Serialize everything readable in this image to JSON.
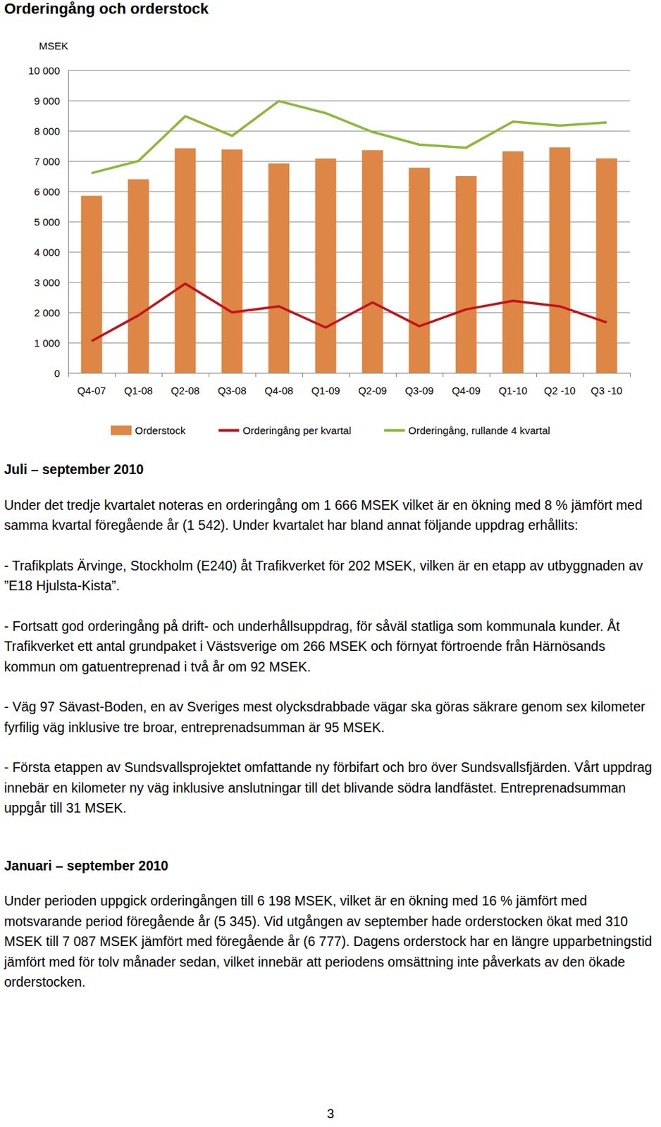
{
  "heading": "Orderingång och orderstock",
  "chart_data": {
    "type": "bar",
    "y_label": "MSEK",
    "categories": [
      "Q4-07",
      "Q1-08",
      "Q2-08",
      "Q3-08",
      "Q4-08",
      "Q1-09",
      "Q2-09",
      "Q3-09",
      "Q4-09",
      "Q1-10",
      "Q2 -10",
      "Q3 -10"
    ],
    "series": [
      {
        "name": "Orderstock",
        "type": "bar",
        "color": "#dd8645",
        "values": [
          5850,
          6400,
          7420,
          7380,
          6920,
          7080,
          7360,
          6777,
          6500,
          7320,
          7450,
          7087
        ]
      },
      {
        "name": "Orderingång per kvartal",
        "type": "line",
        "color": "#c0141a",
        "values": [
          1050,
          1900,
          2950,
          2000,
          2200,
          1500,
          2330,
          1542,
          2100,
          2380,
          2200,
          1666
        ]
      },
      {
        "name": "Orderingång, rullande 4 kvartal",
        "type": "line",
        "color": "#8db83a",
        "values": [
          6600,
          7000,
          8480,
          7830,
          8980,
          8580,
          7960,
          7540,
          7440,
          8300,
          8170,
          8270
        ]
      }
    ],
    "ylim": [
      0,
      10000
    ],
    "yticks": [
      0,
      {
        "value": 1000,
        "label": "1 000"
      },
      {
        "value": 2000,
        "label": "2 000"
      },
      {
        "value": 3000,
        "label": "3 000"
      },
      {
        "value": 4000,
        "label": "4 000"
      },
      {
        "value": 5000,
        "label": "5 000"
      },
      {
        "value": 6000,
        "label": "6 000"
      },
      {
        "value": 7000,
        "label": "7 000"
      },
      {
        "value": 8000,
        "label": "8 000"
      },
      {
        "value": 9000,
        "label": "9 000"
      },
      {
        "value": 10000,
        "label": "10 000"
      }
    ],
    "grid": true,
    "legend": "bottom"
  },
  "sections": [
    {
      "title": "Juli – september 2010",
      "paragraphs": [
        "Under det tredje kvartalet noteras en orderingång om 1 666 MSEK vilket är en ökning med 8 % jämfört med samma kvartal föregående år (1 542). Under kvartalet har bland annat följande uppdrag erhållits:",
        "- Trafikplats Ärvinge, Stockholm (E240) åt Trafikverket för 202 MSEK, vilken är en etapp av utbyggnaden av ”E18 Hjulsta-Kista”.",
        "- Fortsatt god orderingång på drift- och underhållsuppdrag, för såväl statliga som kommunala kunder. Åt Trafikverket ett antal grundpaket i Västsverige om 266 MSEK och förnyat förtroende från Härnösands kommun om gatuentreprenad i två år om 92 MSEK.",
        "- Väg 97 Sävast-Boden, en av Sveriges mest olycksdrabbade vägar ska göras säkrare genom sex kilometer fyrfilig väg inklusive tre broar, entreprenadsumman är 95 MSEK.",
        "- Första etappen av Sundsvallsprojektet omfattande ny förbifart och bro över Sundsvallsfjärden. Vårt uppdrag innebär en kilometer ny väg inklusive anslutningar till det blivande södra landfästet. Entreprenadsumman uppgår till 31 MSEK."
      ]
    },
    {
      "title": "Januari – september 2010",
      "paragraphs": [
        "Under perioden uppgick orderingången till 6 198 MSEK, vilket är en ökning med 16 % jämfört med motsvarande period föregående år (5 345). Vid utgången av september hade orderstocken ökat med 310 MSEK till 7 087 MSEK jämfört med föregående år (6 777). Dagens orderstock har en längre upparbetningstid jämfört med för tolv månader sedan, vilket innebär att periodens omsättning inte påverkats av den ökade orderstocken."
      ]
    }
  ],
  "page_number": "3"
}
